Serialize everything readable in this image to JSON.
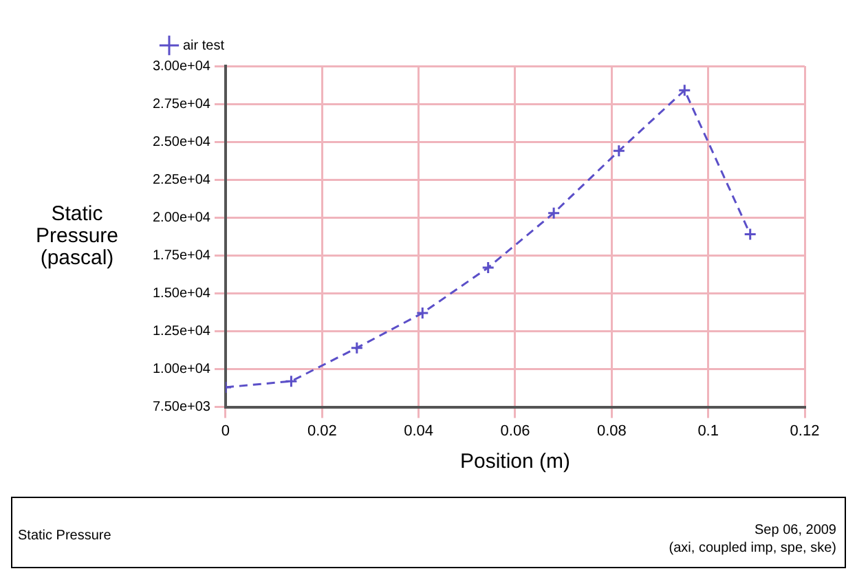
{
  "chart_data": {
    "type": "line",
    "xlabel": "Position (m)",
    "ylabel": "Static Pressure (pascal)",
    "x": [
      0,
      0.0136,
      0.0272,
      0.0408,
      0.0544,
      0.068,
      0.0815,
      0.0951,
      0.1087
    ],
    "series": [
      {
        "name": "air test",
        "color": "#5b4fc8",
        "values": [
          8800,
          9200,
          11400,
          13700,
          16700,
          20300,
          24400,
          28400,
          18900
        ]
      }
    ],
    "xlim": [
      0,
      0.12
    ],
    "xticks": [
      0,
      0.02,
      0.04,
      0.06,
      0.08,
      0.1,
      0.12
    ],
    "ylim": [
      7500,
      30000
    ],
    "yticks": [
      {
        "value": 7500,
        "label": "7.50e+03"
      },
      {
        "value": 10000,
        "label": "1.00e+04"
      },
      {
        "value": 12500,
        "label": "1.25e+04"
      },
      {
        "value": 15000,
        "label": "1.50e+04"
      },
      {
        "value": 17500,
        "label": "1.75e+04"
      },
      {
        "value": 20000,
        "label": "2.00e+04"
      },
      {
        "value": 22500,
        "label": "2.25e+04"
      },
      {
        "value": 25000,
        "label": "2.50e+04"
      },
      {
        "value": 27500,
        "label": "2.75e+04"
      },
      {
        "value": 30000,
        "label": "3.00e+04"
      }
    ],
    "grid": true,
    "legend": "top left",
    "marker": "cross",
    "line_style": "dashed",
    "annotations": [
      "Static Pressure",
      "Sep 06, 2009",
      "(axi, coupled imp, spe, ske)"
    ]
  }
}
